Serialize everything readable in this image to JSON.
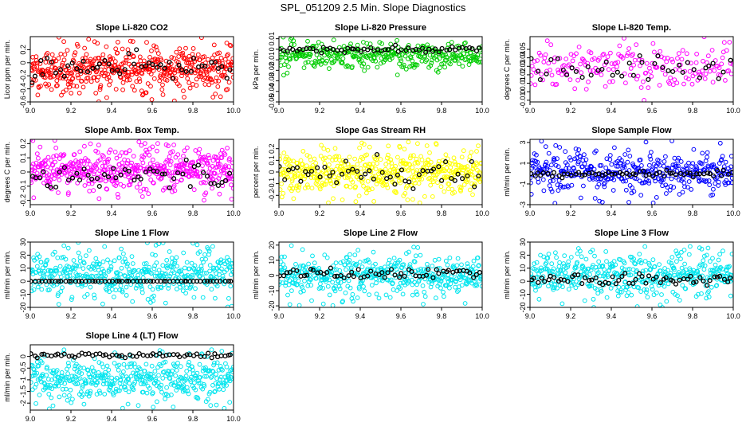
{
  "page_title": "SPL_051209  2.5 Min. Slope Diagnostics",
  "chart_data": [
    {
      "type": "scatter",
      "title": "Slope Li-820 CO2",
      "xlabel": "",
      "ylabel": "Licor ppm per min.",
      "xlim": [
        9.0,
        10.0
      ],
      "ylim": [
        -0.6,
        0.4
      ],
      "xticks": [
        9.0,
        9.2,
        9.4,
        9.6,
        9.8,
        10.0
      ],
      "yticks": [
        -0.6,
        -0.4,
        -0.2,
        0.0,
        0.2
      ],
      "grid": false,
      "legend": "none",
      "series": [
        {
          "color": "#ff0000",
          "values_range": [
            -0.6,
            0.4
          ],
          "count": 500
        },
        {
          "color": "#000000",
          "values_range": [
            -0.35,
            0.2
          ],
          "count": 50
        }
      ]
    },
    {
      "type": "scatter",
      "title": "Slope Li-820 Pressure",
      "xlabel": "",
      "ylabel": "kPa per min.",
      "xlim": [
        9.0,
        10.0
      ],
      "ylim": [
        -0.05,
        0.012
      ],
      "xticks": [
        9.0,
        9.2,
        9.4,
        9.6,
        9.8,
        10.0
      ],
      "yticks": [
        -0.05,
        -0.04,
        -0.03,
        -0.02,
        -0.01,
        0.0,
        0.01
      ],
      "grid": false,
      "legend": "none",
      "series": [
        {
          "color": "#00cc00",
          "values_range": [
            -0.025,
            0.012
          ],
          "count": 350
        },
        {
          "color": "#000000",
          "values_range": [
            -0.004,
            0.004
          ],
          "count": 60
        }
      ]
    },
    {
      "type": "scatter",
      "title": "Slope Li-820 Temp.",
      "xlabel": "",
      "ylabel": "degrees C per min.",
      "xlim": [
        9.0,
        10.0
      ],
      "ylim": [
        -0.012,
        0.065
      ],
      "xticks": [
        9.0,
        9.2,
        9.4,
        9.6,
        9.8,
        10.0
      ],
      "yticks": [
        -0.01,
        0.0,
        0.01,
        0.02,
        0.03,
        0.04,
        0.05
      ],
      "grid": false,
      "legend": "none",
      "series": [
        {
          "color": "#ff00ff",
          "values_range": [
            -0.01,
            0.065
          ],
          "count": 200
        },
        {
          "color": "#000000",
          "values_range": [
            0.0,
            0.05
          ],
          "count": 40
        }
      ]
    },
    {
      "type": "scatter",
      "title": "Slope Amb. Box Temp.",
      "xlabel": "",
      "ylabel": "degrees C per min.",
      "xlim": [
        9.0,
        10.0
      ],
      "ylim": [
        -0.23,
        0.23
      ],
      "xticks": [
        9.0,
        9.2,
        9.4,
        9.6,
        9.8,
        10.0
      ],
      "yticks": [
        -0.2,
        -0.1,
        0.0,
        0.1,
        0.2
      ],
      "grid": false,
      "legend": "none",
      "series": [
        {
          "color": "#ff00ff",
          "values_range": [
            -0.2,
            0.23
          ],
          "count": 500
        },
        {
          "color": "#000000",
          "values_range": [
            -0.15,
            0.1
          ],
          "count": 50
        }
      ]
    },
    {
      "type": "scatter",
      "title": "Slope Gas Stream RH",
      "xlabel": "",
      "ylabel": "percent per min.",
      "xlim": [
        9.0,
        10.0
      ],
      "ylim": [
        -0.28,
        0.28
      ],
      "xticks": [
        9.0,
        9.2,
        9.4,
        9.6,
        9.8,
        10.0
      ],
      "yticks": [
        -0.2,
        -0.1,
        0.0,
        0.1,
        0.2
      ],
      "grid": false,
      "legend": "none",
      "series": [
        {
          "color": "#ffff00",
          "values_range": [
            -0.28,
            0.28
          ],
          "count": 500
        },
        {
          "color": "#000000",
          "values_range": [
            -0.2,
            0.15
          ],
          "count": 50
        }
      ]
    },
    {
      "type": "scatter",
      "title": "Slope Sample Flow",
      "xlabel": "",
      "ylabel": "ml/min per min.",
      "xlim": [
        9.0,
        10.0
      ],
      "ylim": [
        -3,
        3.3
      ],
      "xticks": [
        9.0,
        9.2,
        9.4,
        9.6,
        9.8,
        10.0
      ],
      "yticks": [
        -3,
        -1,
        1,
        3
      ],
      "grid": false,
      "legend": "none",
      "series": [
        {
          "color": "#0000ff",
          "values_range": [
            -3,
            3.2
          ],
          "count": 400
        },
        {
          "color": "#000000",
          "values_range": [
            -0.5,
            0.4
          ],
          "count": 60
        }
      ]
    },
    {
      "type": "scatter",
      "title": "Slope Line 1 Flow",
      "xlabel": "",
      "ylabel": "ml/min per min.",
      "xlim": [
        9.0,
        10.0
      ],
      "ylim": [
        -20,
        30
      ],
      "xticks": [
        9.0,
        9.2,
        9.4,
        9.6,
        9.8,
        10.0
      ],
      "yticks": [
        -20,
        -10,
        0,
        10,
        20,
        30
      ],
      "grid": false,
      "legend": "none",
      "series": [
        {
          "color": "#00e5ee",
          "values_range": [
            -20,
            30
          ],
          "count": 450
        },
        {
          "color": "#000000",
          "values_range": [
            0,
            0
          ],
          "count": 60
        }
      ]
    },
    {
      "type": "scatter",
      "title": "Slope Line 2 Flow",
      "xlabel": "",
      "ylabel": "ml/min per min.",
      "xlim": [
        9.0,
        10.0
      ],
      "ylim": [
        -21,
        22
      ],
      "xticks": [
        9.0,
        9.2,
        9.4,
        9.6,
        9.8,
        10.0
      ],
      "yticks": [
        -20,
        -10,
        0,
        10,
        20
      ],
      "grid": false,
      "legend": "none",
      "series": [
        {
          "color": "#00e5ee",
          "values_range": [
            -20,
            20
          ],
          "count": 450
        },
        {
          "color": "#000000",
          "values_range": [
            -4,
            6
          ],
          "count": 60
        }
      ]
    },
    {
      "type": "scatter",
      "title": "Slope Line 3 Flow",
      "xlabel": "",
      "ylabel": "ml/min per min.",
      "xlim": [
        9.0,
        10.0
      ],
      "ylim": [
        -20,
        30
      ],
      "xticks": [
        9.0,
        9.2,
        9.4,
        9.6,
        9.8,
        10.0
      ],
      "yticks": [
        -20,
        -10,
        0,
        10,
        20,
        30
      ],
      "grid": false,
      "legend": "none",
      "series": [
        {
          "color": "#00e5ee",
          "values_range": [
            -20,
            30
          ],
          "count": 450
        },
        {
          "color": "#000000",
          "values_range": [
            -5,
            8
          ],
          "count": 60
        }
      ]
    },
    {
      "type": "scatter",
      "title": "Slope Line 4 (LT) Flow",
      "xlabel": "",
      "ylabel": "ml/min per min.",
      "xlim": [
        9.0,
        10.0
      ],
      "ylim": [
        -2.3,
        0.5
      ],
      "xticks": [
        9.0,
        9.2,
        9.4,
        9.6,
        9.8,
        10.0
      ],
      "yticks": [
        -2.0,
        -1.5,
        -1.0,
        -0.5,
        0.0
      ],
      "grid": false,
      "legend": "none",
      "series": [
        {
          "color": "#00e5ee",
          "values_range": [
            -2.3,
            0.4
          ],
          "count": 450
        },
        {
          "color": "#000000",
          "values_range": [
            -0.1,
            0.2
          ],
          "count": 60
        }
      ]
    }
  ]
}
